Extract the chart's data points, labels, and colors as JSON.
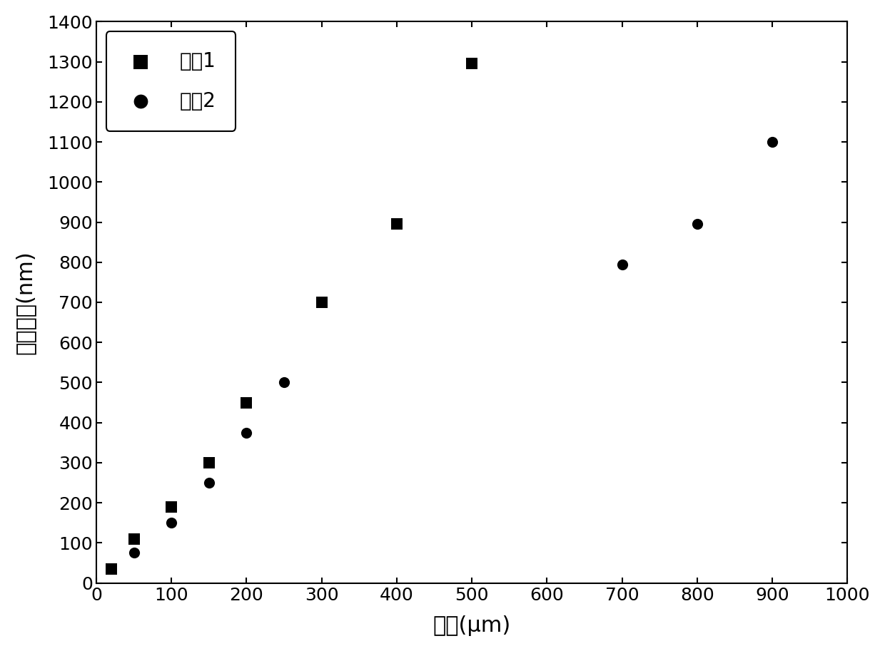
{
  "series1_x": [
    20,
    50,
    100,
    150,
    200,
    300,
    400,
    500
  ],
  "series1_y": [
    35,
    110,
    190,
    300,
    450,
    700,
    895,
    1295
  ],
  "series2_x": [
    50,
    100,
    150,
    200,
    250,
    700,
    800,
    900
  ],
  "series2_y": [
    75,
    150,
    250,
    375,
    500,
    795,
    895,
    1100
  ],
  "xlabel": "深度(μm)",
  "ylabel": "晶粒尺寸(nm)",
  "legend1": "试样1",
  "legend2": "试样2",
  "xlim": [
    0,
    1000
  ],
  "ylim": [
    0,
    1400
  ],
  "xticks": [
    0,
    100,
    200,
    300,
    400,
    500,
    600,
    700,
    800,
    900,
    1000
  ],
  "yticks": [
    0,
    100,
    200,
    300,
    400,
    500,
    600,
    700,
    800,
    900,
    1000,
    1100,
    1200,
    1300,
    1400
  ],
  "marker1": "s",
  "marker2": "o",
  "marker_size": 120,
  "color": "#000000",
  "background": "#ffffff"
}
